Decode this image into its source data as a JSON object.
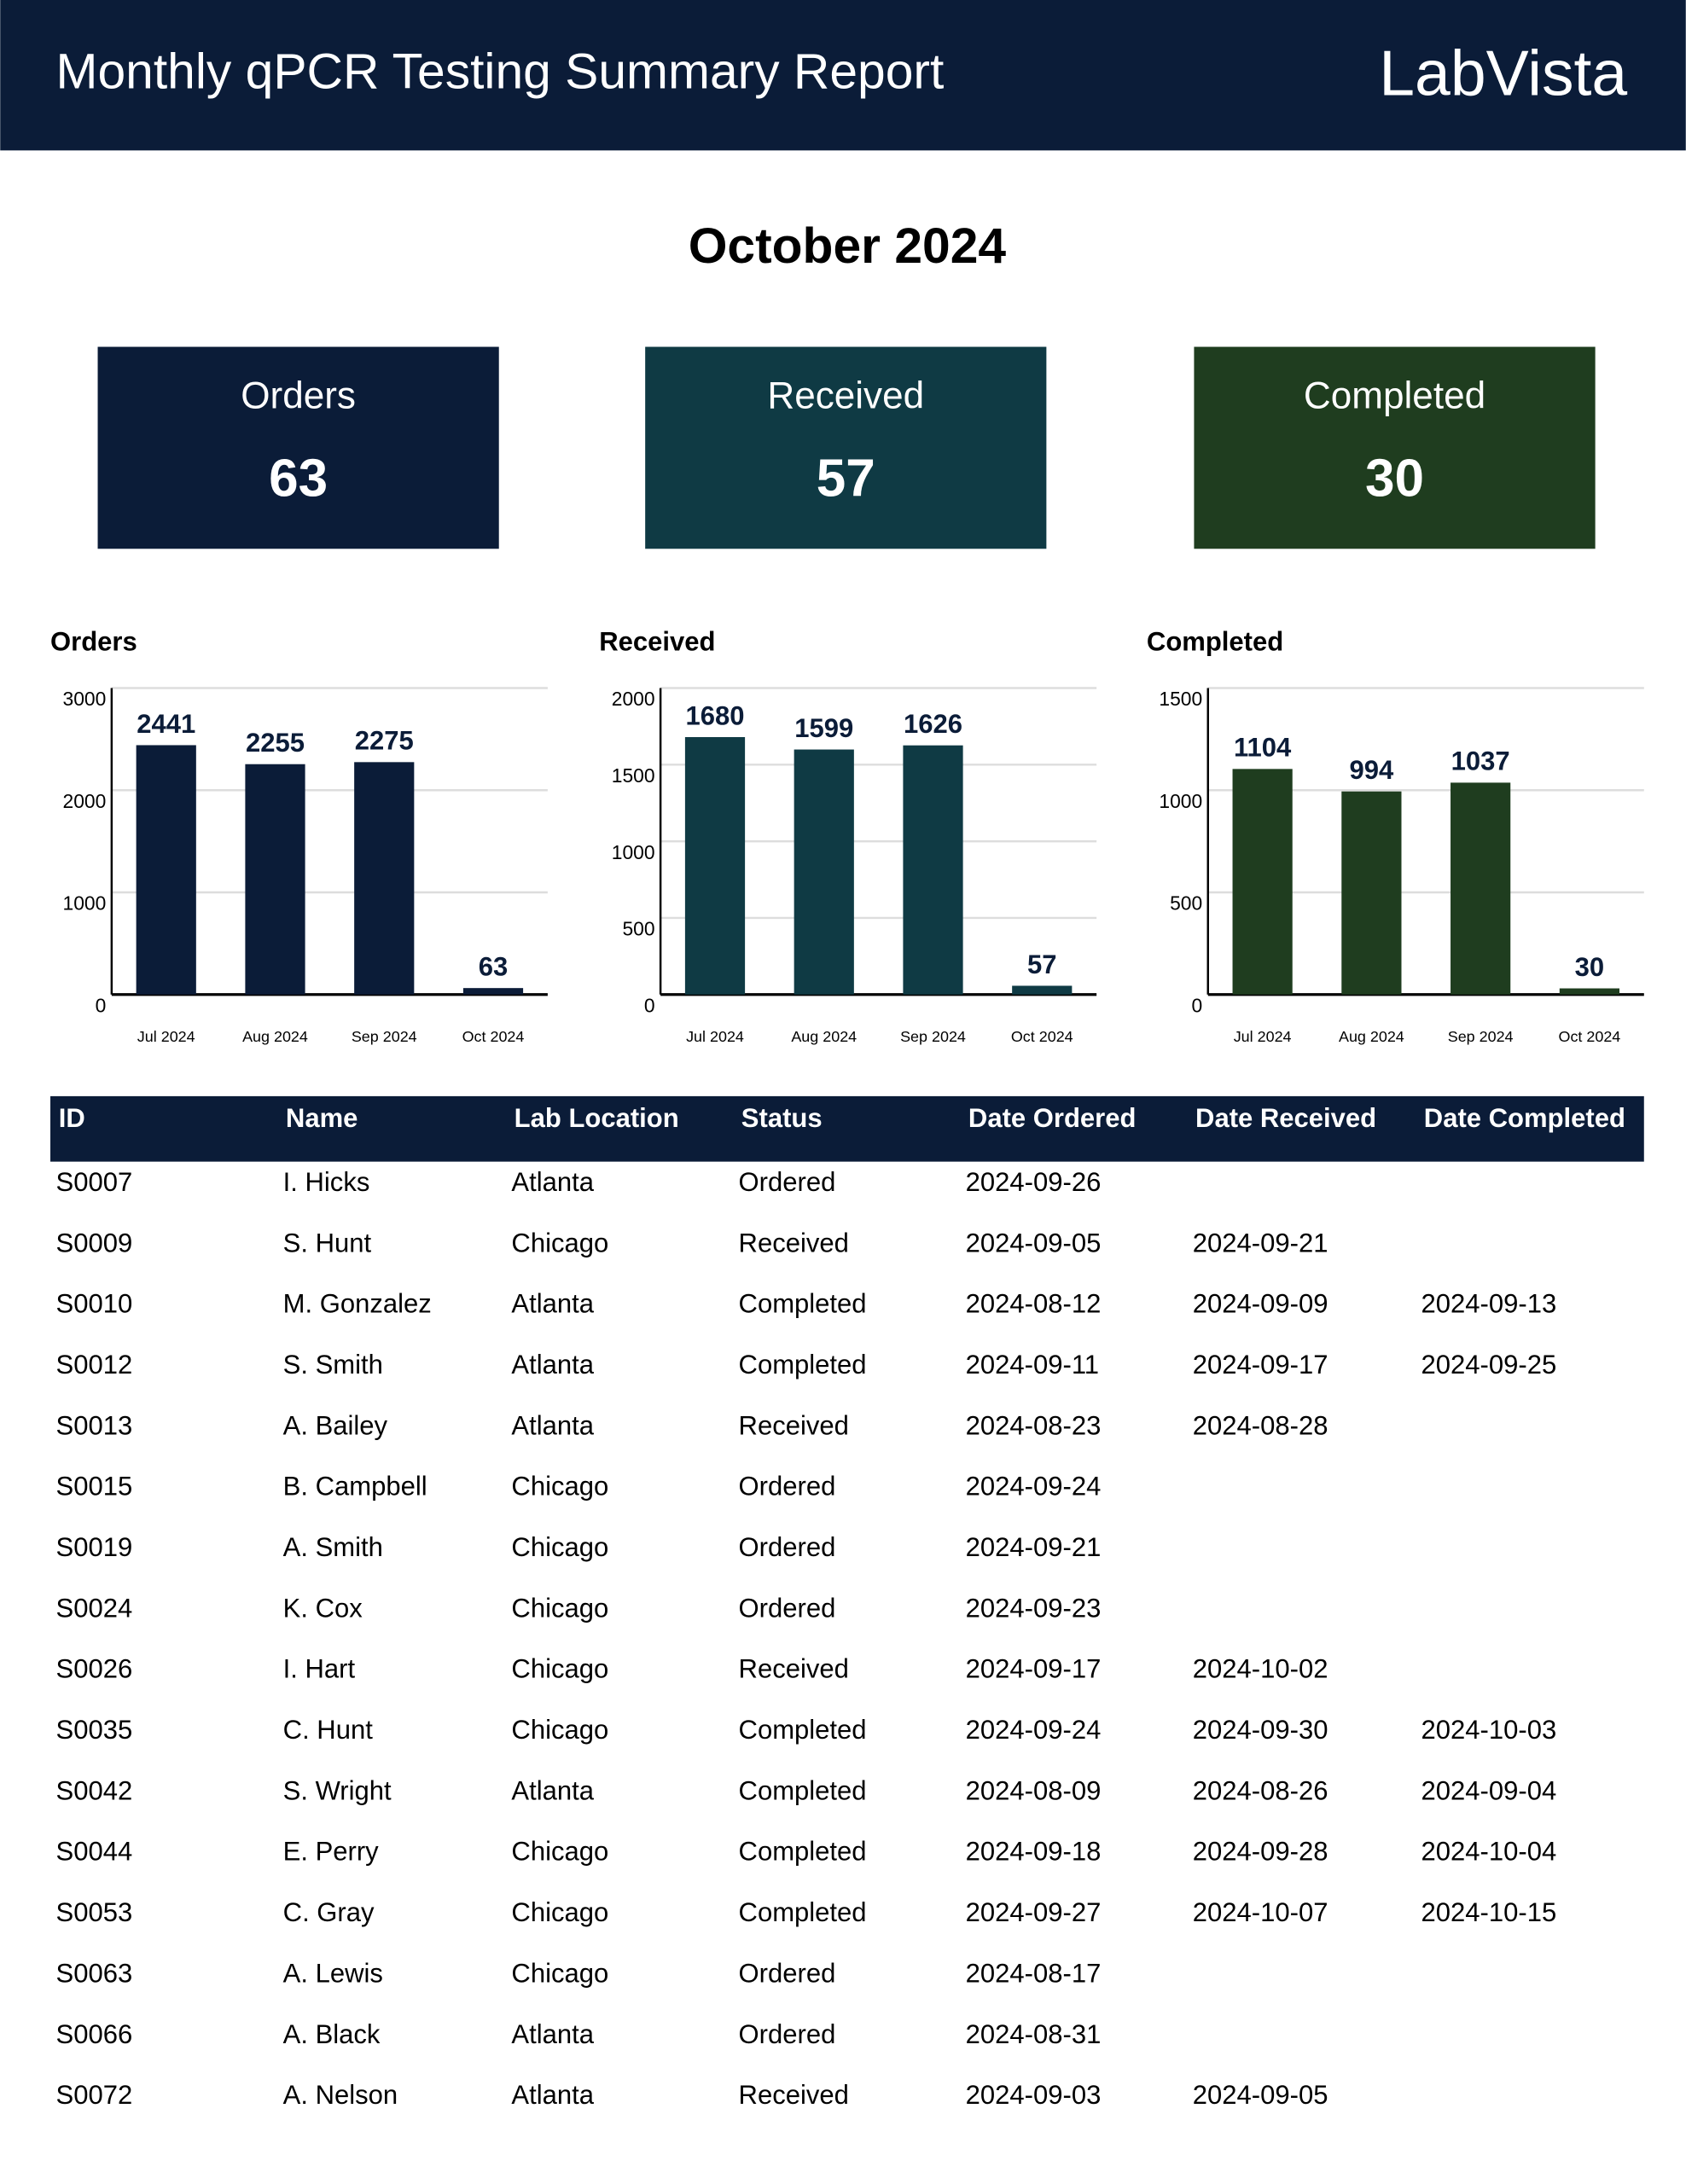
{
  "header": {
    "title": "Monthly qPCR Testing Summary Report",
    "logo": "LabVista"
  },
  "month": "October 2024",
  "kpis": [
    {
      "label": "Orders",
      "value": 63,
      "color": "#0b1c38"
    },
    {
      "label": "Received",
      "value": 57,
      "color": "#0f3a44"
    },
    {
      "label": "Completed",
      "value": 30,
      "color": "#1f3d1f"
    }
  ],
  "chart_data": [
    {
      "type": "bar",
      "title": "Orders",
      "categories": [
        "Jul 2024",
        "Aug 2024",
        "Sep 2024",
        "Oct 2024"
      ],
      "values": [
        2441,
        2255,
        2275,
        63
      ],
      "color": "#0b1c38",
      "ylim": [
        0,
        3000
      ],
      "yticks": [
        0,
        1000,
        2000,
        3000
      ],
      "grid": true
    },
    {
      "type": "bar",
      "title": "Received",
      "categories": [
        "Jul 2024",
        "Aug 2024",
        "Sep 2024",
        "Oct 2024"
      ],
      "values": [
        1680,
        1599,
        1626,
        57
      ],
      "color": "#0f3a44",
      "ylim": [
        0,
        2000
      ],
      "yticks": [
        0,
        500,
        1000,
        1500,
        2000
      ],
      "grid": true
    },
    {
      "type": "bar",
      "title": "Completed",
      "categories": [
        "Jul 2024",
        "Aug 2024",
        "Sep 2024",
        "Oct 2024"
      ],
      "values": [
        1104,
        994,
        1037,
        30
      ],
      "color": "#1f3d1f",
      "ylim": [
        0,
        1500
      ],
      "yticks": [
        0,
        500,
        1000,
        1500
      ],
      "grid": true
    }
  ],
  "table": {
    "columns": [
      "ID",
      "Name",
      "Lab Location",
      "Status",
      "Date Ordered",
      "Date Received",
      "Date Completed"
    ],
    "rows": [
      [
        "S0007",
        "I. Hicks",
        "Atlanta",
        "Ordered",
        "2024-09-26",
        null,
        null
      ],
      [
        "S0009",
        "S. Hunt",
        "Chicago",
        "Received",
        "2024-09-05",
        "2024-09-21",
        null
      ],
      [
        "S0010",
        "M. Gonzalez",
        "Atlanta",
        "Completed",
        "2024-08-12",
        "2024-09-09",
        "2024-09-13"
      ],
      [
        "S0012",
        "S. Smith",
        "Atlanta",
        "Completed",
        "2024-09-11",
        "2024-09-17",
        "2024-09-25"
      ],
      [
        "S0013",
        "A. Bailey",
        "Atlanta",
        "Received",
        "2024-08-23",
        "2024-08-28",
        null
      ],
      [
        "S0015",
        "B. Campbell",
        "Chicago",
        "Ordered",
        "2024-09-24",
        null,
        null
      ],
      [
        "S0019",
        "A. Smith",
        "Chicago",
        "Ordered",
        "2024-09-21",
        null,
        null
      ],
      [
        "S0024",
        "K. Cox",
        "Chicago",
        "Ordered",
        "2024-09-23",
        null,
        null
      ],
      [
        "S0026",
        "I. Hart",
        "Chicago",
        "Received",
        "2024-09-17",
        "2024-10-02",
        null
      ],
      [
        "S0035",
        "C. Hunt",
        "Chicago",
        "Completed",
        "2024-09-24",
        "2024-09-30",
        "2024-10-03"
      ],
      [
        "S0042",
        "S. Wright",
        "Atlanta",
        "Completed",
        "2024-08-09",
        "2024-08-26",
        "2024-09-04"
      ],
      [
        "S0044",
        "E. Perry",
        "Chicago",
        "Completed",
        "2024-09-18",
        "2024-09-28",
        "2024-10-04"
      ],
      [
        "S0053",
        "C. Gray",
        "Chicago",
        "Completed",
        "2024-09-27",
        "2024-10-07",
        "2024-10-15"
      ],
      [
        "S0063",
        "A. Lewis",
        "Chicago",
        "Ordered",
        "2024-08-17",
        null,
        null
      ],
      [
        "S0066",
        "A. Black",
        "Atlanta",
        "Ordered",
        "2024-08-31",
        null,
        null
      ],
      [
        "S0072",
        "A. Nelson",
        "Atlanta",
        "Received",
        "2024-09-03",
        "2024-09-05",
        null
      ]
    ]
  }
}
